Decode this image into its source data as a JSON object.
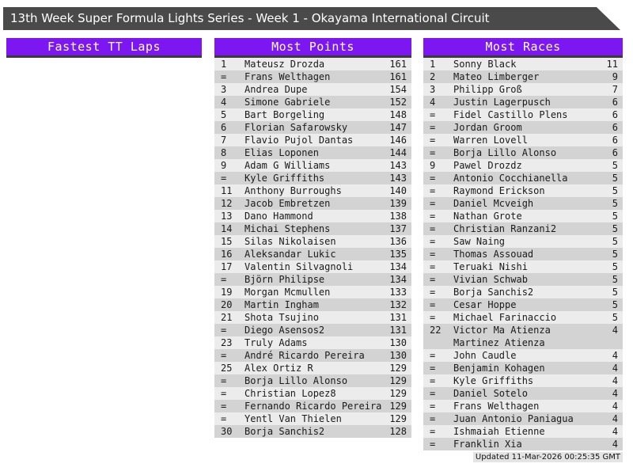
{
  "title_bar": {
    "text": "13th Week Super Formula Lights Series - Week 1 - Okayama International Circuit"
  },
  "sections": {
    "fastest_tt_laps": {
      "header": "Fastest TT Laps",
      "rows": []
    },
    "most_points": {
      "header": "Most Points",
      "rows": [
        {
          "rank": "1",
          "name": "Mateusz Drozda",
          "value": "161"
        },
        {
          "rank": "=",
          "name": "Frans Welthagen",
          "value": "161"
        },
        {
          "rank": "3",
          "name": "Andrea Dupe",
          "value": "154"
        },
        {
          "rank": "4",
          "name": "Simone Gabriele",
          "value": "152"
        },
        {
          "rank": "5",
          "name": "Bart Borgeling",
          "value": "148"
        },
        {
          "rank": "6",
          "name": "Florian Safarowsky",
          "value": "147"
        },
        {
          "rank": "7",
          "name": "Flavio Pujol Dantas",
          "value": "146"
        },
        {
          "rank": "8",
          "name": "Elias Loponen",
          "value": "144"
        },
        {
          "rank": "9",
          "name": "Adam G Williams",
          "value": "143"
        },
        {
          "rank": "=",
          "name": "Kyle Griffiths",
          "value": "143"
        },
        {
          "rank": "11",
          "name": "Anthony Burroughs",
          "value": "140"
        },
        {
          "rank": "12",
          "name": "Jacob Embretzen",
          "value": "139"
        },
        {
          "rank": "13",
          "name": "Dano Hammond",
          "value": "138"
        },
        {
          "rank": "14",
          "name": "Michai Stephens",
          "value": "137"
        },
        {
          "rank": "15",
          "name": "Silas Nikolaisen",
          "value": "136"
        },
        {
          "rank": "16",
          "name": "Aleksandar Lukic",
          "value": "135"
        },
        {
          "rank": "17",
          "name": "Valentin Silvagnoli",
          "value": "134"
        },
        {
          "rank": "=",
          "name": "Björn Philipse",
          "value": "134"
        },
        {
          "rank": "19",
          "name": "Morgan Mcmullen",
          "value": "133"
        },
        {
          "rank": "20",
          "name": "Martin Ingham",
          "value": "132"
        },
        {
          "rank": "21",
          "name": "Shota Tsujino",
          "value": "131"
        },
        {
          "rank": "=",
          "name": "Diego Asensos2",
          "value": "131"
        },
        {
          "rank": "23",
          "name": "Truly Adams",
          "value": "130"
        },
        {
          "rank": "=",
          "name": "André Ricardo Pereira",
          "value": "130"
        },
        {
          "rank": "25",
          "name": "Alex Ortiz R",
          "value": "129"
        },
        {
          "rank": "=",
          "name": "Borja Lillo Alonso",
          "value": "129"
        },
        {
          "rank": "=",
          "name": "Christian Lopez8",
          "value": "129"
        },
        {
          "rank": "=",
          "name": "Fernando Ricardo Pereira",
          "value": "129"
        },
        {
          "rank": "=",
          "name": "Yentl Van Thielen",
          "value": "129"
        },
        {
          "rank": "30",
          "name": "Borja Sanchis2",
          "value": "128"
        }
      ]
    },
    "most_races": {
      "header": "Most Races",
      "rows": [
        {
          "rank": "1",
          "name": "Sonny Black",
          "value": "11"
        },
        {
          "rank": "2",
          "name": "Mateo Limberger",
          "value": "9"
        },
        {
          "rank": "3",
          "name": "Philipp Groß",
          "value": "7"
        },
        {
          "rank": "4",
          "name": "Justin Lagerpusch",
          "value": "6"
        },
        {
          "rank": "=",
          "name": "Fidel Castillo Plens",
          "value": "6"
        },
        {
          "rank": "=",
          "name": "Jordan Groom",
          "value": "6"
        },
        {
          "rank": "=",
          "name": "Warren Lovell",
          "value": "6"
        },
        {
          "rank": "=",
          "name": "Borja Lillo Alonso",
          "value": "6"
        },
        {
          "rank": "9",
          "name": "Pawel Drozdz",
          "value": "5"
        },
        {
          "rank": "=",
          "name": "Antonio Cocchianella",
          "value": "5"
        },
        {
          "rank": "=",
          "name": "Raymond Erickson",
          "value": "5"
        },
        {
          "rank": "=",
          "name": "Daniel Mcveigh",
          "value": "5"
        },
        {
          "rank": "=",
          "name": "Nathan Grote",
          "value": "5"
        },
        {
          "rank": "=",
          "name": "Christian Ranzani2",
          "value": "5"
        },
        {
          "rank": "=",
          "name": "Saw Naing",
          "value": "5"
        },
        {
          "rank": "=",
          "name": "Thomas Assouad",
          "value": "5"
        },
        {
          "rank": "=",
          "name": "Teruaki Nishi",
          "value": "5"
        },
        {
          "rank": "=",
          "name": "Vivian Schwab",
          "value": "5"
        },
        {
          "rank": "=",
          "name": "Borja Sanchis2",
          "value": "5"
        },
        {
          "rank": "=",
          "name": "Cesar Hoppe",
          "value": "5"
        },
        {
          "rank": "=",
          "name": "Michael Farinaccio",
          "value": "5"
        },
        {
          "rank": "22",
          "name": "Victor Ma Atienza Martinez Atienza",
          "value": "4"
        },
        {
          "rank": "=",
          "name": "John Caudle",
          "value": "4"
        },
        {
          "rank": "=",
          "name": "Benjamin Kohagen",
          "value": "4"
        },
        {
          "rank": "=",
          "name": "Kyle Griffiths",
          "value": "4"
        },
        {
          "rank": "=",
          "name": "Daniel Sotelo",
          "value": "4"
        },
        {
          "rank": "=",
          "name": "Frans Welthagen",
          "value": "4"
        },
        {
          "rank": "=",
          "name": "Juan Antonio Paniagua",
          "value": "4"
        },
        {
          "rank": "=",
          "name": "Ishmaiah Etienne",
          "value": "4"
        },
        {
          "rank": "=",
          "name": "Franklin Xia",
          "value": "4"
        }
      ]
    }
  },
  "footer": {
    "updated": "Updated 11-Mar-2026 00:25:35 GMT"
  },
  "colors": {
    "accent_purple": "#7d17f2",
    "titlebar_gray": "#4a4a4a",
    "row_light": "#ececec",
    "row_dark": "#d3d3d3",
    "header_border": "#3a3a3a",
    "footer_bg": "#e4e4e4"
  }
}
